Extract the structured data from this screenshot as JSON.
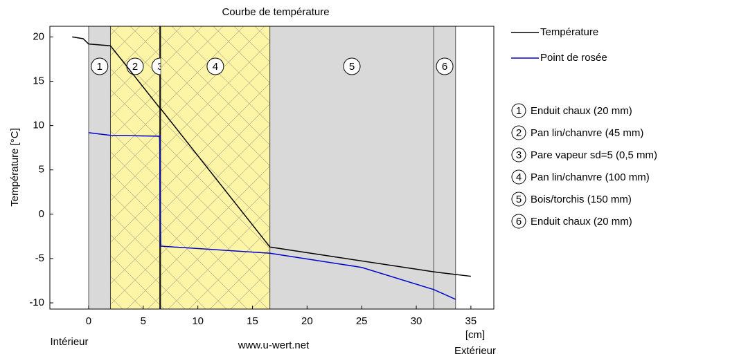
{
  "chart_data": {
    "type": "line",
    "title": "Courbe de température",
    "ylabel": "Température [°C]",
    "xlabel": "[cm]",
    "left_label": "Intérieur",
    "right_label": "Extérieur",
    "source": "www.u-wert.net",
    "xlim": [
      -3.55,
      37.1
    ],
    "ylim": [
      -10.7,
      21.2
    ],
    "xticks": [
      0,
      5,
      10,
      15,
      20,
      25,
      30,
      35
    ],
    "yticks": [
      -10,
      -5,
      0,
      5,
      10,
      15,
      20
    ],
    "layers": [
      {
        "number": "1",
        "name": "Enduit chaux (20 mm)",
        "start": 0,
        "end": 2,
        "color": "#d9d9d9"
      },
      {
        "number": "2",
        "name": "Pan lin/chanvre (45 mm)",
        "start": 2,
        "end": 6.5,
        "color": "#fdf5a6"
      },
      {
        "number": "3",
        "name": "Pare vapeur sd=5 (0,5 mm)",
        "start": 6.5,
        "end": 6.6,
        "color": "#000000"
      },
      {
        "number": "4",
        "name": "Pan lin/chanvre (100 mm)",
        "start": 6.6,
        "end": 16.6,
        "color": "#fdf5a6"
      },
      {
        "number": "5",
        "name": "Bois/torchis (150 mm)",
        "start": 16.6,
        "end": 31.6,
        "color": "#d9d9d9"
      },
      {
        "number": "6",
        "name": "Enduit chaux (20 mm)",
        "start": 31.6,
        "end": 33.6,
        "color": "#d9d9d9"
      }
    ],
    "series": [
      {
        "name": "Température",
        "color": "#000000",
        "x": [
          -1.5,
          -0.5,
          0,
          2,
          6.5,
          6.6,
          16.6,
          31.6,
          33.6,
          35
        ],
        "values": [
          20,
          19.8,
          19.2,
          19,
          12,
          11.9,
          -3.7,
          -6.5,
          -6.8,
          -7.0
        ]
      },
      {
        "name": "Point de rosée",
        "color": "#0000cc",
        "x": [
          0,
          2,
          6.5,
          6.6,
          16.6,
          25,
          31.6,
          33.6
        ],
        "values": [
          9.2,
          8.9,
          8.8,
          -3.6,
          -4.4,
          -6,
          -8.5,
          -9.6
        ]
      }
    ]
  }
}
